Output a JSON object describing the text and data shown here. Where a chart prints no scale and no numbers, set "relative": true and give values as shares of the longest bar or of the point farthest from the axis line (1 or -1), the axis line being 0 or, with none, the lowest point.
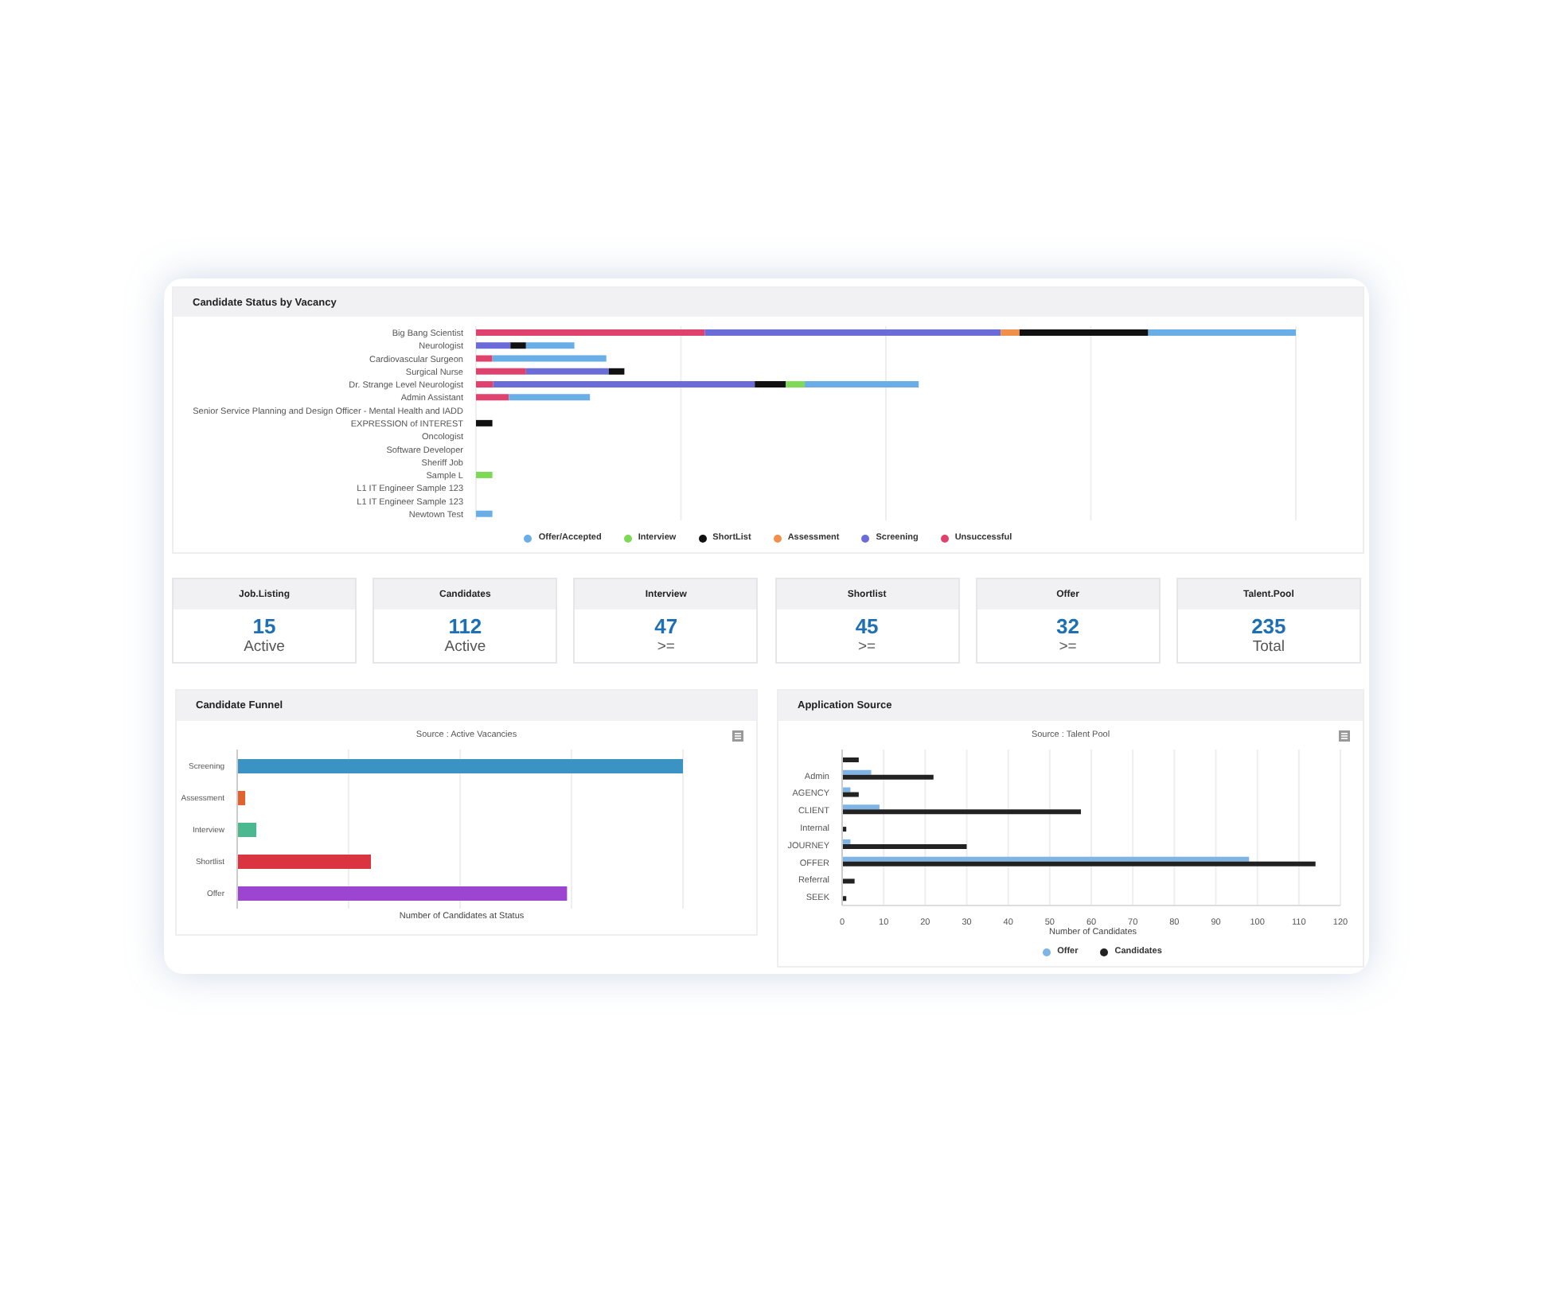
{
  "chart_data": [
    {
      "type": "bar",
      "title": "Candidate Status by Vacancy",
      "orientation": "horizontal",
      "stacked": true,
      "relative": true,
      "grid": "x",
      "legend": "bottom",
      "categories": [
        "Big Bang Scientist",
        "Neurologist",
        "Cardiovascular Surgeon",
        "Surgical Nurse",
        "Dr. Strange Level Neurologist",
        "Admin Assistant",
        "Senior Service Planning and Design Officer - Mental Health and IADD",
        "EXPRESSION of INTEREST",
        "Oncologist",
        "Software Developer",
        "Sheriff Job",
        "Sample L",
        "L1 IT Engineer Sample 123",
        "L1 IT Engineer Sample 123",
        "Newtown Test"
      ],
      "series": [
        {
          "name": "Unsuccessful",
          "color": "#e0426e",
          "values": [
            0.279,
            0,
            0.02,
            0.061,
            0.021,
            0.04,
            0,
            0,
            0,
            0,
            0,
            0,
            0,
            0,
            0
          ]
        },
        {
          "name": "Screening",
          "color": "#6c6cd9",
          "values": [
            0.361,
            0.042,
            0,
            0.101,
            0.319,
            0,
            0,
            0,
            0,
            0,
            0,
            0,
            0,
            0,
            0
          ]
        },
        {
          "name": "Assessment",
          "color": "#f0904a",
          "values": [
            0.023,
            0,
            0,
            0,
            0,
            0,
            0,
            0,
            0,
            0,
            0,
            0,
            0,
            0,
            0
          ]
        },
        {
          "name": "ShortList",
          "color": "#111111",
          "values": [
            0.157,
            0.019,
            0,
            0.019,
            0.038,
            0,
            0,
            0.02,
            0,
            0,
            0,
            0,
            0,
            0,
            0
          ]
        },
        {
          "name": "Interview",
          "color": "#7ed957",
          "values": [
            0,
            0,
            0,
            0,
            0.023,
            0,
            0,
            0,
            0,
            0,
            0,
            0.02,
            0,
            0,
            0
          ]
        },
        {
          "name": "Offer/Accepted",
          "color": "#6aaee8",
          "values": [
            0.18,
            0.059,
            0.139,
            0,
            0.139,
            0.099,
            0,
            0,
            0,
            0,
            0,
            0,
            0,
            0,
            0.02
          ]
        }
      ]
    },
    {
      "type": "other",
      "categories": [
        "Job.Listing",
        "Candidates",
        "Interview",
        "Shortlist",
        "Offer",
        "Talent.Pool"
      ],
      "values": [
        15,
        112,
        47,
        45,
        32,
        235
      ],
      "data_labels": true,
      "annotations": [
        "Active",
        "Active",
        ">=",
        ">=",
        ">=",
        "Total"
      ]
    },
    {
      "type": "bar",
      "title": "Candidate Funnel",
      "subtitle": "Source : Active Vacancies",
      "xlabel": "Number of Candidates at Status",
      "orientation": "horizontal",
      "relative": true,
      "grid": "x",
      "categories": [
        "Screening",
        "Assessment",
        "Interview",
        "Shortlist",
        "Offer"
      ],
      "values": [
        1,
        0.018,
        0.043,
        0.3,
        0.74
      ],
      "colors": [
        "#3a93c3",
        "#e0622f",
        "#4cb88f",
        "#d9343f",
        "#9b45d0"
      ]
    },
    {
      "type": "bar",
      "title": "Application Source",
      "subtitle": "Source : Talent Pool",
      "xlabel": "Number of Candidates",
      "orientation": "horizontal",
      "grid": "x",
      "legend": "bottom",
      "xlim": [
        0,
        120
      ],
      "xticks": [
        0,
        10,
        20,
        30,
        40,
        50,
        60,
        70,
        80,
        90,
        100,
        110,
        120
      ],
      "categories": [
        null,
        "Admin",
        "AGENCY",
        "CLIENT",
        "Internal",
        "JOURNEY",
        "OFFER",
        "Referral",
        "SEEK"
      ],
      "series": [
        {
          "name": "Offer",
          "color": "#7fb5e6",
          "values": [
            0,
            7,
            2,
            9,
            0,
            2,
            98,
            0,
            0
          ]
        },
        {
          "name": "Candidates",
          "color": "#222222",
          "values": [
            4,
            22,
            4,
            57.5,
            1,
            30,
            114,
            3,
            1
          ]
        }
      ]
    }
  ]
}
